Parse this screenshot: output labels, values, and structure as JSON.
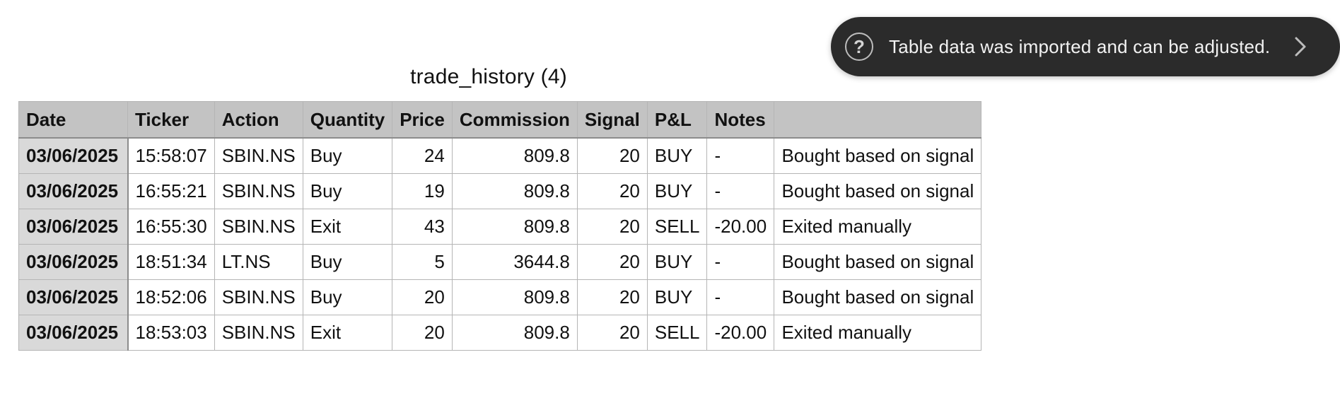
{
  "toast": {
    "message": "Table data was imported and can be adjusted.",
    "help_glyph": "?",
    "help_icon": "question-circle-icon",
    "expand_icon": "chevron-right-icon"
  },
  "sheet": {
    "title": "trade_history (4)",
    "columns": [
      "Date",
      "Ticker",
      "Action",
      "Quantity",
      "Price",
      "Commission",
      "Signal",
      "P&L",
      "Notes",
      ""
    ],
    "rows": [
      [
        "03/06/2025",
        "15:58:07",
        "SBIN.NS",
        "Buy",
        "24",
        "809.8",
        "20",
        "BUY",
        "-",
        "Bought based on signal"
      ],
      [
        "03/06/2025",
        "16:55:21",
        "SBIN.NS",
        "Buy",
        "19",
        "809.8",
        "20",
        "BUY",
        "-",
        "Bought based on signal"
      ],
      [
        "03/06/2025",
        "16:55:30",
        "SBIN.NS",
        "Exit",
        "43",
        "809.8",
        "20",
        "SELL",
        "-20.00",
        "Exited manually"
      ],
      [
        "03/06/2025",
        "18:51:34",
        "LT.NS",
        "Buy",
        "5",
        "3644.8",
        "20",
        "BUY",
        "-",
        "Bought based on signal"
      ],
      [
        "03/06/2025",
        "18:52:06",
        "SBIN.NS",
        "Buy",
        "20",
        "809.8",
        "20",
        "BUY",
        "-",
        "Bought based on signal"
      ],
      [
        "03/06/2025",
        "18:53:03",
        "SBIN.NS",
        "Exit",
        "20",
        "809.8",
        "20",
        "SELL",
        "-20.00",
        "Exited manually"
      ]
    ]
  },
  "colors": {
    "header_bg": "#c3c3c3",
    "row_header_bg": "#d9d9d9",
    "toast_bg": "#2b2b2b",
    "grid_line": "#b5b5b5"
  }
}
